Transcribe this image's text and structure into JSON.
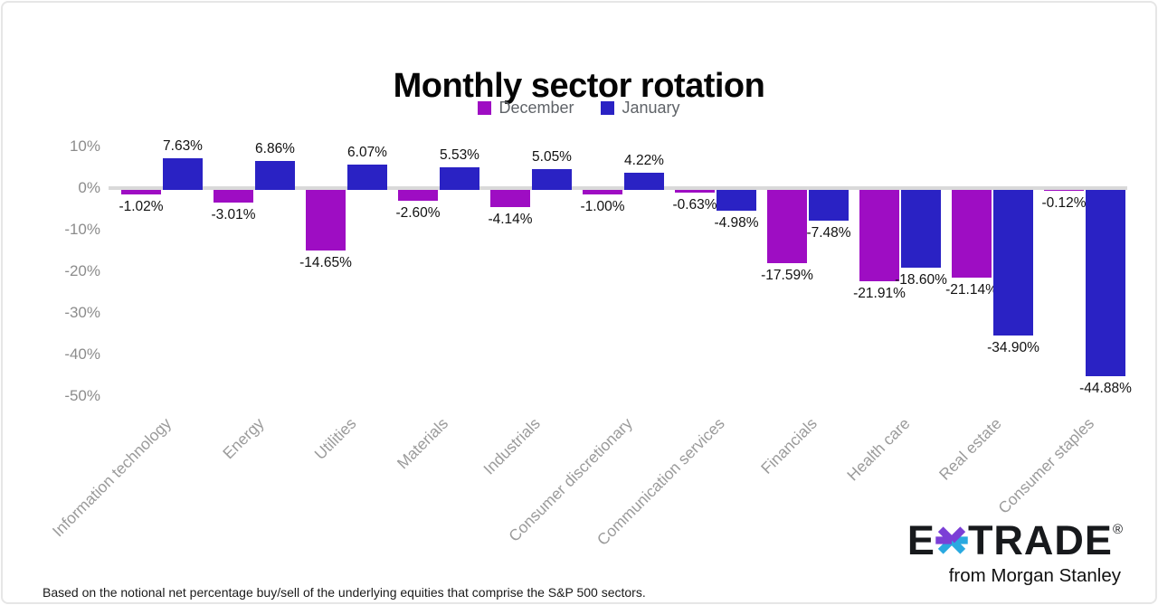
{
  "chart_data": {
    "type": "bar",
    "title": "Monthly sector rotation",
    "categories": [
      "Information technology",
      "Energy",
      "Utilities",
      "Materials",
      "Industrials",
      "Consumer discretionary",
      "Communication services",
      "Financials",
      "Health care",
      "Real estate",
      "Consumer staples"
    ],
    "series": [
      {
        "name": "December",
        "color": "#9E0DC3",
        "values": [
          -1.02,
          -3.01,
          -14.65,
          -2.6,
          -4.14,
          -1.0,
          -0.63,
          -17.59,
          -21.91,
          -21.14,
          -0.12
        ],
        "labels": [
          "-1.02%",
          "-3.01%",
          "-14.65%",
          "-2.60%",
          "-4.14%",
          "-1.00%",
          "-0.63%",
          "-17.59%",
          "-21.91%",
          "-21.14%",
          "-0.12%"
        ]
      },
      {
        "name": "January",
        "color": "#2A22C4",
        "values": [
          7.63,
          6.86,
          6.07,
          5.53,
          5.05,
          4.22,
          -4.98,
          -7.48,
          -18.6,
          -34.9,
          -44.88
        ],
        "labels": [
          "7.63%",
          "6.86%",
          "6.07%",
          "5.53%",
          "5.05%",
          "4.22%",
          "-4.98%",
          "-7.48%",
          "-18.60%",
          "-34.90%",
          "-44.88%"
        ]
      }
    ],
    "y_axis": {
      "ticks": [
        "10%",
        "0%",
        "-10%",
        "-20%",
        "-30%",
        "-40%",
        "-50%"
      ],
      "tick_values": [
        10,
        0,
        -10,
        -20,
        -30,
        -40,
        -50
      ],
      "range": [
        -52,
        14
      ]
    },
    "grid": "zero-line-only",
    "legend_position": "top-center"
  },
  "footnote": "Based on the notional net percentage buy/sell of the underlying equities that comprise the S&P 500 sectors.",
  "logo": {
    "text_e": "E",
    "text_trade": "TRADE",
    "registered": "®",
    "tagline": "from Morgan Stanley",
    "star_colors": {
      "purple": "#7B3FD6",
      "cyan": "#29A9E0"
    }
  },
  "colors": {
    "zero_line": "#D9D9D9",
    "axis_text": "#8C8C8C",
    "category_text": "#9B9B9B",
    "value_text": "#111111",
    "legend_text": "#5F6368",
    "border": "#E4E4E4"
  }
}
